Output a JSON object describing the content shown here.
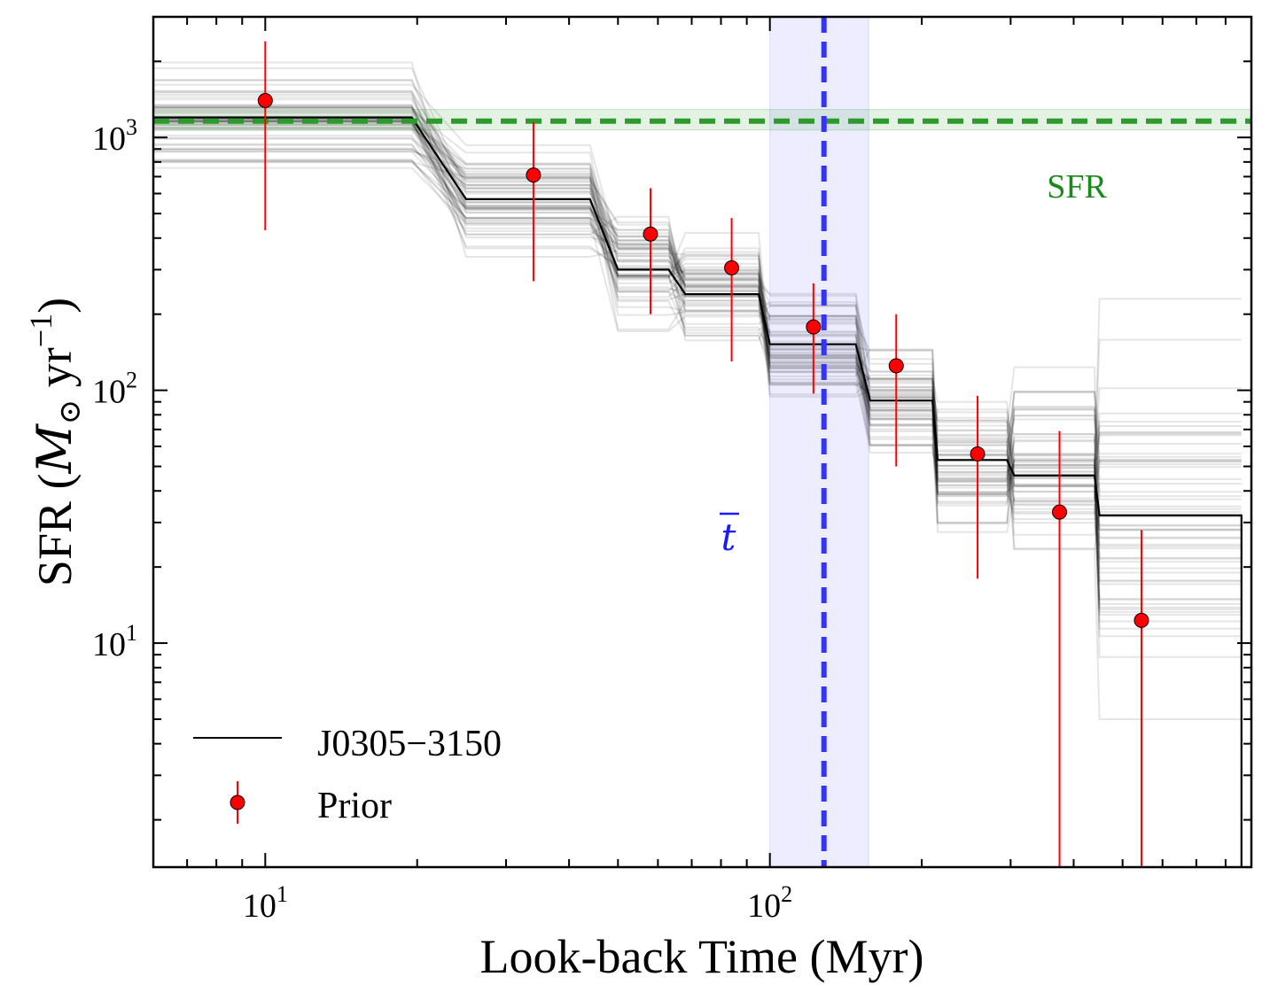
{
  "chart_data": {
    "type": "line",
    "title": "",
    "xlabel": "Look-back Time (Myr)",
    "ylabel_prefix": "SFR (",
    "ylabel_m": "M",
    "ylabel_sun": "⊙",
    "ylabel_yr": " yr",
    "ylabel_exp": "−1",
    "ylabel_suffix": ")",
    "xscale": "log",
    "yscale": "log",
    "xlim": [
      6,
      900
    ],
    "ylim": [
      1.3,
      3000
    ],
    "x_ticks": [
      {
        "value": 10,
        "base": "10",
        "exp": "1"
      },
      {
        "value": 100,
        "base": "10",
        "exp": "2"
      }
    ],
    "y_ticks": [
      {
        "value": 10,
        "base": "10",
        "exp": "1"
      },
      {
        "value": 100,
        "base": "10",
        "exp": "2"
      },
      {
        "value": 1000,
        "base": "10",
        "exp": "3"
      }
    ],
    "median_sfh": {
      "name": "J0305−3150",
      "color": "#000000",
      "bins": [
        {
          "x0": 6,
          "x1": 19.5,
          "sfr": 1200
        },
        {
          "x0": 25,
          "x1": 44,
          "sfr": 570
        },
        {
          "x0": 50,
          "x1": 63,
          "sfr": 300
        },
        {
          "x0": 68,
          "x1": 95,
          "sfr": 240
        },
        {
          "x0": 100,
          "x1": 148,
          "sfr": 152
        },
        {
          "x0": 158,
          "x1": 210,
          "sfr": 91
        },
        {
          "x0": 215,
          "x1": 295,
          "sfr": 53
        },
        {
          "x0": 305,
          "x1": 440,
          "sfr": 46
        },
        {
          "x0": 450,
          "x1": 860,
          "sfr": 32
        }
      ],
      "end_drop_x": 860
    },
    "posterior_draws": {
      "count": 60,
      "color": "#000000",
      "opacity": 0.1,
      "spread_dex": [
        0.1,
        0.1,
        0.1,
        0.09,
        0.1,
        0.1,
        0.12,
        0.15,
        0.3
      ],
      "last_bin_range": [
        5,
        230
      ]
    },
    "prior": {
      "name": "Prior",
      "marker_color": "#ff0000",
      "points": [
        {
          "x": 10,
          "y": 1400,
          "ylo": 430,
          "yhi": 2400
        },
        {
          "x": 34,
          "y": 710,
          "ylo": 270,
          "yhi": 1150
        },
        {
          "x": 58,
          "y": 415,
          "ylo": 200,
          "yhi": 630
        },
        {
          "x": 84,
          "y": 305,
          "ylo": 130,
          "yhi": 480
        },
        {
          "x": 122,
          "y": 178,
          "ylo": 97,
          "yhi": 265
        },
        {
          "x": 178,
          "y": 125,
          "ylo": 50,
          "yhi": 200
        },
        {
          "x": 258,
          "y": 56,
          "ylo": 18,
          "yhi": 95
        },
        {
          "x": 375,
          "y": 33,
          "ylo": 1.3,
          "yhi": 69
        },
        {
          "x": 545,
          "y": 12.3,
          "ylo": 1.3,
          "yhi": 28
        }
      ]
    },
    "sfr_line": {
      "label": "SFR",
      "value": 1160,
      "band": [
        1070,
        1290
      ],
      "color": "#2e9a2e",
      "label_color": "#1a8a1a"
    },
    "t_bar": {
      "label": "t",
      "value": 128,
      "band": [
        100,
        157
      ],
      "color": "#3333ff",
      "label_color": "#1a1aff"
    },
    "legend": {
      "placement": "bottom-left",
      "entries": [
        "J0305−3150",
        "Prior"
      ]
    }
  }
}
